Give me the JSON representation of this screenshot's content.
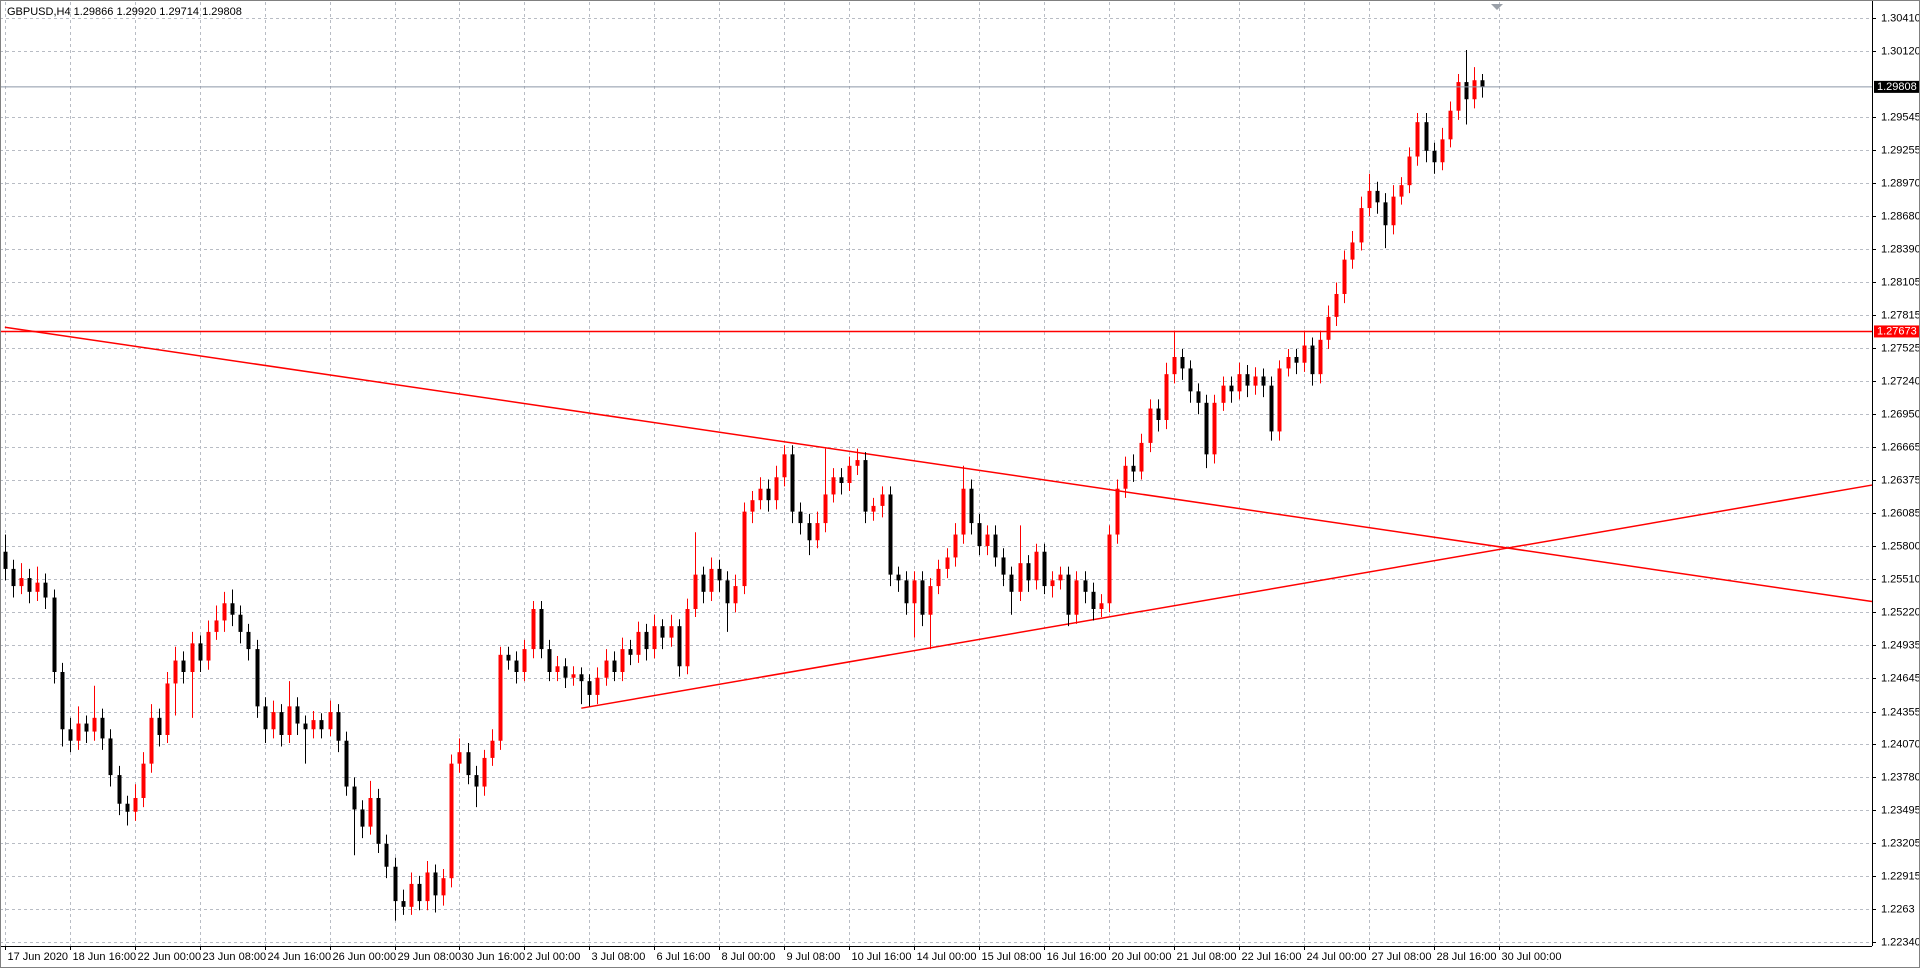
{
  "chart_data": {
    "type": "candlestick",
    "title": "GBPUSD,H4  1.29866 1.29920 1.29714 1.29808",
    "up_color": "#ff0000",
    "down_color": "#000000",
    "grid": true,
    "xlim": [
      -0.6,
      230
    ],
    "ylim": [
      1.22308,
      1.30549
    ],
    "yticks": [
      {
        "value": 1.3041,
        "label": "1.30410"
      },
      {
        "value": 1.3012,
        "label": "1.30120"
      },
      1.29545,
      1.29255,
      {
        "value": 1.2897,
        "label": "1.28970"
      },
      {
        "value": 1.2868,
        "label": "1.28680"
      },
      {
        "value": 1.2839,
        "label": "1.28390"
      },
      1.28105,
      1.27815,
      1.27525,
      {
        "value": 1.2724,
        "label": "1.27240"
      },
      {
        "value": 1.2695,
        "label": "1.26950"
      },
      1.26665,
      1.26375,
      1.26085,
      {
        "value": 1.258,
        "label": "1.25800"
      },
      {
        "value": 1.2551,
        "label": "1.25510"
      },
      {
        "value": 1.2522,
        "label": "1.25220"
      },
      1.24935,
      1.24645,
      1.24355,
      {
        "value": 1.2407,
        "label": "1.24070"
      },
      {
        "value": 1.2378,
        "label": "1.23780"
      },
      1.23495,
      1.23205,
      1.22915,
      1.2263,
      {
        "value": 1.2234,
        "label": "1.22340"
      }
    ],
    "xticks": [
      {
        "value": 0,
        "label": "17 Jun 2020"
      },
      {
        "value": 8,
        "label": "18 Jun 16:00"
      },
      {
        "value": 16,
        "label": "22 Jun 00:00"
      },
      {
        "value": 24,
        "label": "23 Jun 08:00"
      },
      {
        "value": 32,
        "label": "24 Jun 16:00"
      },
      {
        "value": 40,
        "label": "26 Jun 00:00"
      },
      {
        "value": 48,
        "label": "29 Jun 08:00"
      },
      {
        "value": 56,
        "label": "30 Jun 16:00"
      },
      {
        "value": 64,
        "label": "2 Jul 00:00"
      },
      {
        "value": 72,
        "label": "3 Jul 08:00"
      },
      {
        "value": 80,
        "label": "6 Jul 16:00"
      },
      {
        "value": 88,
        "label": "8 Jul 00:00"
      },
      {
        "value": 96,
        "label": "9 Jul 08:00"
      },
      {
        "value": 104,
        "label": "10 Jul 16:00"
      },
      {
        "value": 112,
        "label": "14 Jul 00:00"
      },
      {
        "value": 120,
        "label": "15 Jul 08:00"
      },
      {
        "value": 128,
        "label": "16 Jul 16:00"
      },
      {
        "value": 136,
        "label": "20 Jul 00:00"
      },
      {
        "value": 144,
        "label": "21 Jul 08:00"
      },
      {
        "value": 152,
        "label": "22 Jul 16:00"
      },
      {
        "value": 160,
        "label": "24 Jul 00:00"
      },
      {
        "value": 168,
        "label": "27 Jul 08:00"
      },
      {
        "value": 176,
        "label": "28 Jul 16:00"
      },
      {
        "value": 184,
        "label": "30 Jul 00:00"
      }
    ],
    "hline": {
      "value": 1.27673,
      "color": "#ff0000"
    },
    "trendlines": [
      {
        "x": [
          0,
          230
        ],
        "y": [
          1.2771,
          1.25315
        ],
        "color": "#ff0000"
      },
      {
        "x": [
          71,
          230
        ],
        "y": [
          1.24384,
          1.26332
        ],
        "color": "#ff0000"
      }
    ],
    "ohlc": [
      [
        1.2575,
        1.259,
        1.255,
        1.256
      ],
      [
        1.256,
        1.2568,
        1.2535,
        1.2545
      ],
      [
        1.2545,
        1.2565,
        1.2538,
        1.2552
      ],
      [
        1.2552,
        1.256,
        1.253,
        1.254
      ],
      [
        1.254,
        1.2562,
        1.2532,
        1.2548
      ],
      [
        1.2548,
        1.2556,
        1.2525,
        1.2535
      ],
      [
        1.2535,
        1.2542,
        1.246,
        1.247
      ],
      [
        1.247,
        1.2478,
        1.2405,
        1.242
      ],
      [
        1.242,
        1.243,
        1.24,
        1.241
      ],
      [
        1.241,
        1.244,
        1.2402,
        1.2425
      ],
      [
        1.2425,
        1.2432,
        1.2408,
        1.2418
      ],
      [
        1.2418,
        1.2458,
        1.241,
        1.243
      ],
      [
        1.243,
        1.2438,
        1.2402,
        1.2412
      ],
      [
        1.2412,
        1.242,
        1.237,
        1.238
      ],
      [
        1.238,
        1.2388,
        1.2345,
        1.2355
      ],
      [
        1.2355,
        1.2362,
        1.2336,
        1.2348
      ],
      [
        1.2348,
        1.2372,
        1.234,
        1.236
      ],
      [
        1.236,
        1.24,
        1.2352,
        1.239
      ],
      [
        1.239,
        1.2442,
        1.2382,
        1.243
      ],
      [
        1.243,
        1.2438,
        1.2405,
        1.2415
      ],
      [
        1.2415,
        1.247,
        1.2408,
        1.246
      ],
      [
        1.246,
        1.2492,
        1.2432,
        1.248
      ],
      [
        1.248,
        1.2488,
        1.246,
        1.247
      ],
      [
        1.247,
        1.2505,
        1.243,
        1.2495
      ],
      [
        1.2495,
        1.2502,
        1.247,
        1.248
      ],
      [
        1.248,
        1.2515,
        1.2472,
        1.2505
      ],
      [
        1.2505,
        1.2528,
        1.2498,
        1.2515
      ],
      [
        1.2515,
        1.254,
        1.2505,
        1.253
      ],
      [
        1.253,
        1.2542,
        1.251,
        1.252
      ],
      [
        1.252,
        1.2528,
        1.2495,
        1.2505
      ],
      [
        1.2505,
        1.2512,
        1.248,
        1.249
      ],
      [
        1.249,
        1.2498,
        1.243,
        1.244
      ],
      [
        1.244,
        1.2448,
        1.2408,
        1.242
      ],
      [
        1.242,
        1.2445,
        1.2412,
        1.2435
      ],
      [
        1.2435,
        1.2442,
        1.2405,
        1.2415
      ],
      [
        1.2415,
        1.2462,
        1.2408,
        1.244
      ],
      [
        1.244,
        1.2448,
        1.2415,
        1.2425
      ],
      [
        1.2425,
        1.2432,
        1.239,
        1.242
      ],
      [
        1.242,
        1.2436,
        1.2412,
        1.2428
      ],
      [
        1.2428,
        1.2434,
        1.2412,
        1.242
      ],
      [
        1.242,
        1.2445,
        1.2414,
        1.2435
      ],
      [
        1.2435,
        1.2442,
        1.24,
        1.241
      ],
      [
        1.241,
        1.2418,
        1.2362,
        1.237
      ],
      [
        1.237,
        1.2378,
        1.231,
        1.235
      ],
      [
        1.235,
        1.2358,
        1.2325,
        1.2335
      ],
      [
        1.2335,
        1.2375,
        1.2328,
        1.236
      ],
      [
        1.236,
        1.2368,
        1.2312,
        1.232
      ],
      [
        1.232,
        1.2328,
        1.229,
        1.23
      ],
      [
        1.23,
        1.2308,
        1.2253,
        1.227
      ],
      [
        1.227,
        1.228,
        1.2258,
        1.2265
      ],
      [
        1.2265,
        1.2295,
        1.2258,
        1.2285
      ],
      [
        1.2285,
        1.2292,
        1.2262,
        1.227
      ],
      [
        1.227,
        1.2305,
        1.2262,
        1.2295
      ],
      [
        1.2295,
        1.2302,
        1.226,
        1.2275
      ],
      [
        1.2275,
        1.2298,
        1.2266,
        1.229
      ],
      [
        1.229,
        1.2398,
        1.2282,
        1.239
      ],
      [
        1.239,
        1.2412,
        1.2382,
        1.24
      ],
      [
        1.24,
        1.2408,
        1.2372,
        1.238
      ],
      [
        1.238,
        1.2388,
        1.2352,
        1.237
      ],
      [
        1.237,
        1.2402,
        1.2362,
        1.2395
      ],
      [
        1.2395,
        1.242,
        1.2388,
        1.241
      ],
      [
        1.241,
        1.2492,
        1.2402,
        1.2485
      ],
      [
        1.2485,
        1.2492,
        1.2472,
        1.248
      ],
      [
        1.248,
        1.2488,
        1.246,
        1.247
      ],
      [
        1.247,
        1.2498,
        1.2462,
        1.249
      ],
      [
        1.249,
        1.2532,
        1.2482,
        1.2525
      ],
      [
        1.2525,
        1.2532,
        1.2482,
        1.249
      ],
      [
        1.249,
        1.2498,
        1.2462,
        1.247
      ],
      [
        1.247,
        1.2484,
        1.2462,
        1.2475
      ],
      [
        1.2475,
        1.2482,
        1.2456,
        1.2465
      ],
      [
        1.2465,
        1.2475,
        1.2458,
        1.2468
      ],
      [
        1.2468,
        1.2474,
        1.2442,
        1.2462
      ],
      [
        1.2462,
        1.2468,
        1.244,
        1.245
      ],
      [
        1.245,
        1.2474,
        1.2442,
        1.2465
      ],
      [
        1.2465,
        1.249,
        1.2458,
        1.248
      ],
      [
        1.248,
        1.2488,
        1.2462,
        1.247
      ],
      [
        1.247,
        1.25,
        1.2462,
        1.249
      ],
      [
        1.249,
        1.2498,
        1.2476,
        1.2485
      ],
      [
        1.2485,
        1.2514,
        1.2478,
        1.2505
      ],
      [
        1.2505,
        1.2512,
        1.248,
        1.249
      ],
      [
        1.249,
        1.252,
        1.2482,
        1.251
      ],
      [
        1.251,
        1.2516,
        1.249,
        1.25
      ],
      [
        1.25,
        1.252,
        1.2492,
        1.251
      ],
      [
        1.251,
        1.2516,
        1.2466,
        1.2475
      ],
      [
        1.2475,
        1.2534,
        1.2468,
        1.2525
      ],
      [
        1.2525,
        1.2592,
        1.2518,
        1.2555
      ],
      [
        1.2555,
        1.2562,
        1.253,
        1.254
      ],
      [
        1.254,
        1.257,
        1.2532,
        1.256
      ],
      [
        1.256,
        1.2568,
        1.254,
        1.255
      ],
      [
        1.255,
        1.2558,
        1.2505,
        1.253
      ],
      [
        1.253,
        1.2555,
        1.2522,
        1.2545
      ],
      [
        1.2545,
        1.2618,
        1.2538,
        1.261
      ],
      [
        1.261,
        1.2628,
        1.26,
        1.262
      ],
      [
        1.262,
        1.264,
        1.2612,
        1.263
      ],
      [
        1.263,
        1.2638,
        1.261,
        1.262
      ],
      [
        1.262,
        1.265,
        1.2612,
        1.264
      ],
      [
        1.264,
        1.2668,
        1.2632,
        1.266
      ],
      [
        1.266,
        1.2668,
        1.26,
        1.261
      ],
      [
        1.261,
        1.2618,
        1.259,
        1.26
      ],
      [
        1.26,
        1.2608,
        1.2572,
        1.2585
      ],
      [
        1.2585,
        1.261,
        1.2578,
        1.26
      ],
      [
        1.26,
        1.2665,
        1.2592,
        1.2625
      ],
      [
        1.2625,
        1.2648,
        1.2618,
        1.264
      ],
      [
        1.264,
        1.2648,
        1.2625,
        1.2635
      ],
      [
        1.2635,
        1.2658,
        1.2628,
        1.265
      ],
      [
        1.265,
        1.2665,
        1.2642,
        1.2655
      ],
      [
        1.2655,
        1.2662,
        1.26,
        1.261
      ],
      [
        1.261,
        1.2622,
        1.2602,
        1.2615
      ],
      [
        1.2615,
        1.2632,
        1.2605,
        1.2625
      ],
      [
        1.2625,
        1.2632,
        1.2545,
        1.2555
      ],
      [
        1.2555,
        1.2562,
        1.254,
        1.255
      ],
      [
        1.255,
        1.2558,
        1.252,
        1.253
      ],
      [
        1.253,
        1.2558,
        1.25,
        1.255
      ],
      [
        1.255,
        1.2558,
        1.251,
        1.252
      ],
      [
        1.252,
        1.2552,
        1.249,
        1.2545
      ],
      [
        1.2545,
        1.2568,
        1.2538,
        1.256
      ],
      [
        1.256,
        1.2578,
        1.2552,
        1.257
      ],
      [
        1.257,
        1.26,
        1.2562,
        1.259
      ],
      [
        1.259,
        1.265,
        1.2582,
        1.263
      ],
      [
        1.263,
        1.2638,
        1.259,
        1.26
      ],
      [
        1.26,
        1.2608,
        1.2572,
        1.258
      ],
      [
        1.258,
        1.2598,
        1.2572,
        1.259
      ],
      [
        1.259,
        1.2598,
        1.2562,
        1.257
      ],
      [
        1.257,
        1.2578,
        1.2545,
        1.2555
      ],
      [
        1.2555,
        1.2562,
        1.252,
        1.254
      ],
      [
        1.254,
        1.2598,
        1.2532,
        1.2565
      ],
      [
        1.2565,
        1.2572,
        1.254,
        1.255
      ],
      [
        1.255,
        1.2582,
        1.2542,
        1.2575
      ],
      [
        1.2575,
        1.2582,
        1.2538,
        1.2545
      ],
      [
        1.2545,
        1.2558,
        1.2535,
        1.255
      ],
      [
        1.255,
        1.2562,
        1.2542,
        1.2555
      ],
      [
        1.2555,
        1.2562,
        1.251,
        1.252
      ],
      [
        1.252,
        1.2558,
        1.2512,
        1.255
      ],
      [
        1.255,
        1.2558,
        1.253,
        1.254
      ],
      [
        1.254,
        1.2548,
        1.2515,
        1.2525
      ],
      [
        1.2525,
        1.2538,
        1.2518,
        1.253
      ],
      [
        1.253,
        1.2598,
        1.2522,
        1.259
      ],
      [
        1.259,
        1.2638,
        1.2582,
        1.263
      ],
      [
        1.263,
        1.2658,
        1.2622,
        1.265
      ],
      [
        1.265,
        1.266,
        1.2636,
        1.2645
      ],
      [
        1.2645,
        1.2678,
        1.2638,
        1.267
      ],
      [
        1.267,
        1.2708,
        1.2662,
        1.27
      ],
      [
        1.27,
        1.2708,
        1.268,
        1.269
      ],
      [
        1.269,
        1.274,
        1.2682,
        1.273
      ],
      [
        1.273,
        1.2768,
        1.2722,
        1.2745
      ],
      [
        1.2745,
        1.2752,
        1.2725,
        1.2735
      ],
      [
        1.2735,
        1.2742,
        1.2705,
        1.2715
      ],
      [
        1.2715,
        1.2722,
        1.2695,
        1.2705
      ],
      [
        1.2705,
        1.2712,
        1.2648,
        1.266
      ],
      [
        1.266,
        1.2712,
        1.2652,
        1.2705
      ],
      [
        1.2705,
        1.2728,
        1.2698,
        1.272
      ],
      [
        1.272,
        1.2728,
        1.2705,
        1.2715
      ],
      [
        1.2715,
        1.274,
        1.2708,
        1.273
      ],
      [
        1.273,
        1.2738,
        1.271,
        1.272
      ],
      [
        1.272,
        1.2736,
        1.2712,
        1.2728
      ],
      [
        1.2728,
        1.2735,
        1.271,
        1.272
      ],
      [
        1.272,
        1.2728,
        1.2672,
        1.268
      ],
      [
        1.268,
        1.2742,
        1.2672,
        1.2735
      ],
      [
        1.2735,
        1.2752,
        1.2728,
        1.2745
      ],
      [
        1.2745,
        1.2752,
        1.273,
        1.274
      ],
      [
        1.274,
        1.2768,
        1.2732,
        1.2755
      ],
      [
        1.2755,
        1.2762,
        1.272,
        1.273
      ],
      [
        1.273,
        1.2768,
        1.2722,
        1.276
      ],
      [
        1.276,
        1.279,
        1.2752,
        1.278
      ],
      [
        1.278,
        1.281,
        1.2772,
        1.28
      ],
      [
        1.28,
        1.2838,
        1.2792,
        1.283
      ],
      [
        1.283,
        1.2855,
        1.2822,
        1.2845
      ],
      [
        1.2845,
        1.2885,
        1.2838,
        1.2875
      ],
      [
        1.2875,
        1.2905,
        1.2868,
        1.289
      ],
      [
        1.289,
        1.2898,
        1.287,
        1.288
      ],
      [
        1.288,
        1.2888,
        1.284,
        1.286
      ],
      [
        1.286,
        1.2895,
        1.2852,
        1.2885
      ],
      [
        1.2885,
        1.2902,
        1.2878,
        1.2895
      ],
      [
        1.2895,
        1.2928,
        1.2888,
        1.292
      ],
      [
        1.292,
        1.2958,
        1.2912,
        1.295
      ],
      [
        1.295,
        1.2958,
        1.2915,
        1.2925
      ],
      [
        1.2925,
        1.2932,
        1.2905,
        1.2915
      ],
      [
        1.2915,
        1.2945,
        1.2908,
        1.2935
      ],
      [
        1.2935,
        1.2968,
        1.2928,
        1.296
      ],
      [
        1.296,
        1.2992,
        1.2952,
        1.2985
      ],
      [
        1.2985,
        1.3013,
        1.2948,
        1.297
      ],
      [
        1.297,
        1.2998,
        1.2962,
        1.29866
      ],
      [
        1.29866,
        1.2992,
        1.29714,
        1.29808
      ]
    ]
  }
}
